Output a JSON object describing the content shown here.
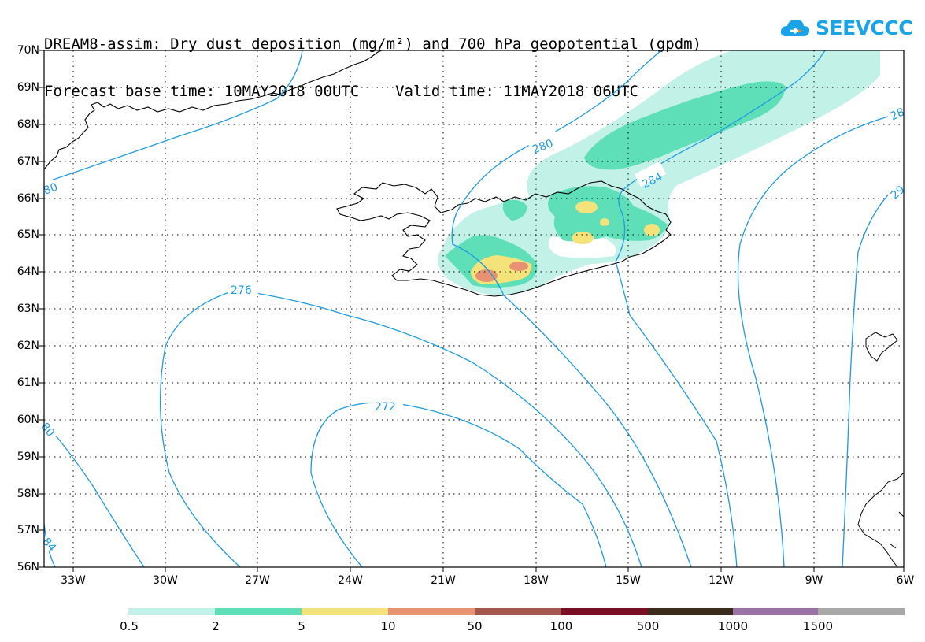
{
  "title": {
    "line1": "DREAM8-assim: Dry dust deposition (mg/m²) and 700 hPa geopotential (gpdm)",
    "line2": "Forecast base time: 10MAY2018 00UTC    Valid time: 11MAY2018 06UTC"
  },
  "logo": {
    "text": "SEEVCCC",
    "icon": "cloud-icon"
  },
  "map": {
    "lat_labels": [
      "70N",
      "69N",
      "68N",
      "67N",
      "66N",
      "65N",
      "64N",
      "63N",
      "62N",
      "61N",
      "60N",
      "59N",
      "58N",
      "57N",
      "56N"
    ],
    "lon_labels": [
      "33W",
      "30W",
      "27W",
      "24W",
      "21W",
      "18W",
      "15W",
      "12W",
      "9W",
      "6W"
    ],
    "contour_labels": [
      "280",
      "284",
      "28",
      "276",
      "29",
      "272",
      "80",
      "84",
      "80"
    ],
    "contour_color": "#1e9be0"
  },
  "legend": {
    "labels": [
      "0.5",
      "2",
      "5",
      "10",
      "50",
      "100",
      "500",
      "1000",
      "1500"
    ],
    "colors": [
      "#c2f1e8",
      "#5edfb8",
      "#f4e27a",
      "#e79272",
      "#a4574d",
      "#7b0d24",
      "#3b2b1a",
      "#9b71a6",
      "#a8a8a8"
    ]
  }
}
